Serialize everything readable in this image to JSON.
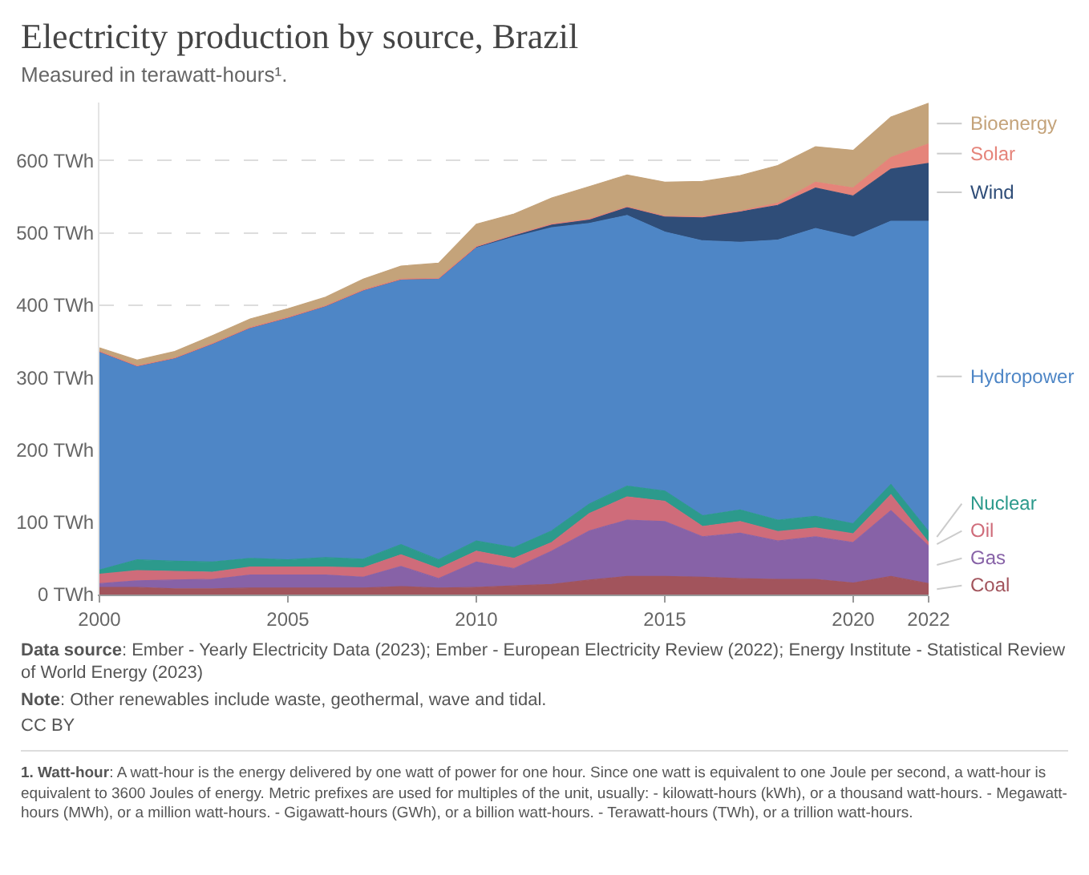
{
  "chart_data": {
    "type": "area",
    "stacked": true,
    "title": "Electricity production by source, Brazil",
    "subtitle": "Measured in terawatt-hours¹.",
    "x": [
      2000,
      2001,
      2002,
      2003,
      2004,
      2005,
      2006,
      2007,
      2008,
      2009,
      2010,
      2011,
      2012,
      2013,
      2014,
      2015,
      2016,
      2017,
      2018,
      2019,
      2020,
      2021,
      2022
    ],
    "series": [
      {
        "name": "Coal",
        "color": "#a2545c",
        "values": [
          10,
          10,
          8,
          8,
          9,
          9,
          9,
          9,
          11,
          9,
          10,
          12,
          14,
          20,
          25,
          25,
          24,
          22,
          21,
          21,
          16,
          25,
          15
        ]
      },
      {
        "name": "Gas",
        "color": "#8762a7",
        "values": [
          5,
          9,
          12,
          13,
          18,
          18,
          18,
          15,
          28,
          13,
          35,
          24,
          46,
          68,
          78,
          76,
          56,
          63,
          53,
          59,
          56,
          91,
          52
        ]
      },
      {
        "name": "Oil",
        "color": "#cf6c7a",
        "values": [
          13,
          14,
          12,
          10,
          11,
          11,
          11,
          13,
          16,
          14,
          15,
          14,
          12,
          24,
          32,
          28,
          14,
          16,
          13,
          12,
          12,
          22,
          5
        ]
      },
      {
        "name": "Nuclear",
        "color": "#2c9a8c",
        "values": [
          6,
          15,
          14,
          14,
          12,
          10,
          13,
          12,
          14,
          12,
          14,
          15,
          16,
          13,
          15,
          14,
          15,
          16,
          16,
          16,
          14,
          14,
          15
        ]
      },
      {
        "name": "Hydropower",
        "color": "#4e86c6",
        "values": [
          302,
          268,
          281,
          302,
          319,
          335,
          348,
          372,
          367,
          388,
          405,
          429,
          419,
          388,
          374,
          358,
          380,
          370,
          387,
          398,
          396,
          364,
          429
        ]
      },
      {
        "name": "Wind",
        "color": "#2f4d78",
        "values": [
          0,
          0,
          0,
          0,
          0,
          0,
          0,
          0,
          0,
          1,
          2,
          3,
          5,
          6,
          12,
          22,
          33,
          42,
          48,
          56,
          57,
          72,
          80
        ]
      },
      {
        "name": "Solar",
        "color": "#e5847a",
        "values": [
          0,
          0,
          0,
          0,
          0,
          0,
          0,
          0,
          0,
          0,
          0,
          0,
          0,
          0,
          0,
          0,
          0,
          1,
          3,
          8,
          11,
          16,
          27
        ]
      },
      {
        "name": "Bioenergy",
        "color": "#c4a37a",
        "values": [
          5,
          8,
          9,
          11,
          12,
          12,
          12,
          15,
          18,
          21,
          31,
          29,
          36,
          45,
          44,
          47,
          49,
          49,
          52,
          49,
          52,
          56,
          56
        ]
      }
    ],
    "xlim": [
      2000,
      2022
    ],
    "xticks": [
      2000,
      2005,
      2010,
      2015,
      2020,
      2022
    ],
    "ylim": [
      0,
      680
    ],
    "yticks": [
      {
        "value": 0,
        "label": "0 TWh"
      },
      {
        "value": 100,
        "label": "100 TWh"
      },
      {
        "value": 200,
        "label": "200 TWh"
      },
      {
        "value": 300,
        "label": "300 TWh"
      },
      {
        "value": 400,
        "label": "400 TWh"
      },
      {
        "value": 500,
        "label": "500 TWh"
      },
      {
        "value": 600,
        "label": "600 TWh"
      }
    ],
    "grid": "y",
    "legend": false,
    "annotations": [
      "Data source: Ember - Yearly Electricity Data (2023); Ember - European Electricity Review (2022); Energy Institute - Statistical Review of World Energy (2023)",
      "Note: Other renewables include waste, geothermal, wave and tidal.",
      "CC BY",
      "1. Watt-hour: A watt-hour is the energy delivered by one watt of power for one hour. Since one watt is equivalent to one Joule per second, a watt-hour is equivalent to 3600 Joules of energy. Metric prefixes are used for multiples of the unit, usually: - kilowatt-hours (kWh), or a thousand watt-hours. - Megawatt-hours (MWh), or a million watt-hours. - Gigawatt-hours (GWh), or a billion watt-hours. - Terawatt-hours (TWh), or a trillion watt-hours."
    ]
  }
}
